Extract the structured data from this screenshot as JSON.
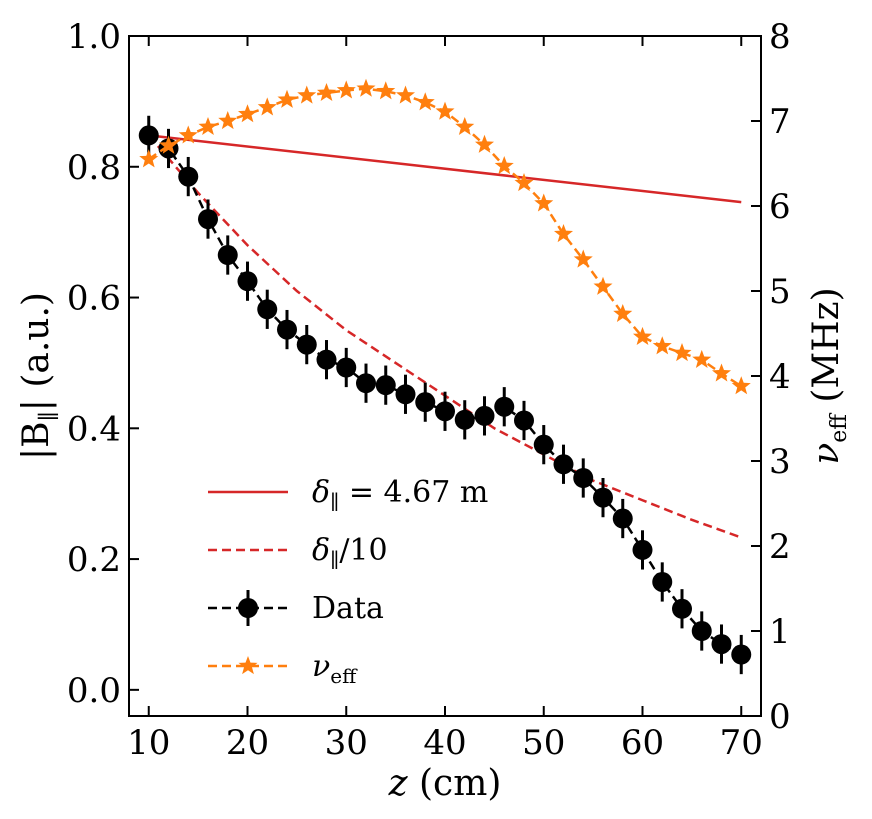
{
  "chart_data": {
    "type": "line",
    "x_axis": {
      "label_var": "z",
      "label_unit": " (cm)",
      "range": [
        8,
        72
      ],
      "ticks": [
        "10",
        "20",
        "30",
        "40",
        "50",
        "60",
        "70"
      ],
      "tick_values": [
        10,
        20,
        30,
        40,
        50,
        60,
        70
      ]
    },
    "y_left": {
      "label_pre": "|B",
      "label_sub": "∥",
      "label_post": "| (a.u.)",
      "range": [
        -0.04,
        1.0
      ],
      "ticks": [
        "0.0",
        "0.2",
        "0.4",
        "0.6",
        "0.8",
        "1.0"
      ],
      "tick_values": [
        0,
        0.2,
        0.4,
        0.6,
        0.8,
        1.0
      ]
    },
    "y_right": {
      "label_var": "ν",
      "label_sub": "eff",
      "label_unit": " (MHz)",
      "range": [
        0,
        8
      ],
      "ticks": [
        "0",
        "1",
        "2",
        "3",
        "4",
        "5",
        "6",
        "7",
        "8"
      ],
      "tick_values": [
        0,
        1,
        2,
        3,
        4,
        5,
        6,
        7,
        8
      ]
    },
    "series": [
      {
        "name": "δ∥ = 4.67 m",
        "legend_var": "δ",
        "legend_sub": "∥",
        "legend_post": " =  4.67 m",
        "axis": "left",
        "style": "solid",
        "color": "#d62728",
        "x": [
          10,
          70
        ],
        "y": [
          0.848,
          0.746
        ]
      },
      {
        "name": "δ∥/10",
        "legend_var": "δ",
        "legend_sub": "∥",
        "legend_post": "/10",
        "axis": "left",
        "style": "dashed",
        "color": "#d62728",
        "x": [
          10,
          15,
          20,
          25,
          30,
          35,
          40,
          45,
          50,
          55,
          60,
          65,
          70
        ],
        "y": [
          0.848,
          0.76,
          0.68,
          0.61,
          0.55,
          0.5,
          0.45,
          0.4,
          0.36,
          0.32,
          0.29,
          0.26,
          0.233
        ]
      },
      {
        "name": "Data",
        "legend_text": "Data",
        "axis": "left",
        "style": "dashed-marker-circle",
        "color": "#000000",
        "x": [
          10,
          12,
          14,
          16,
          18,
          20,
          22,
          24,
          26,
          28,
          30,
          32,
          34,
          36,
          38,
          40,
          42,
          44,
          46,
          48,
          50,
          52,
          54,
          56,
          58,
          60,
          62,
          64,
          66,
          68,
          70
        ],
        "y": [
          0.848,
          0.828,
          0.785,
          0.72,
          0.665,
          0.625,
          0.582,
          0.551,
          0.528,
          0.505,
          0.493,
          0.469,
          0.466,
          0.452,
          0.44,
          0.426,
          0.413,
          0.419,
          0.433,
          0.412,
          0.375,
          0.345,
          0.324,
          0.294,
          0.262,
          0.214,
          0.165,
          0.124,
          0.09,
          0.07,
          0.054
        ],
        "yerr": 0.03
      },
      {
        "name": "νeff",
        "legend_var": "ν",
        "legend_sub": "eff",
        "axis": "right",
        "style": "dashed-marker-star",
        "color": "#ff7f0e",
        "x": [
          10,
          12,
          14,
          16,
          18,
          20,
          22,
          24,
          26,
          28,
          30,
          32,
          34,
          36,
          38,
          40,
          42,
          44,
          46,
          48,
          50,
          52,
          54,
          56,
          58,
          60,
          62,
          64,
          66,
          68,
          70
        ],
        "y": [
          6.55,
          6.71,
          6.83,
          6.93,
          7.0,
          7.08,
          7.16,
          7.25,
          7.3,
          7.33,
          7.36,
          7.38,
          7.35,
          7.3,
          7.22,
          7.11,
          6.93,
          6.72,
          6.47,
          6.27,
          6.03,
          5.67,
          5.37,
          5.05,
          4.73,
          4.46,
          4.35,
          4.27,
          4.19,
          4.03,
          3.88
        ]
      }
    ]
  }
}
